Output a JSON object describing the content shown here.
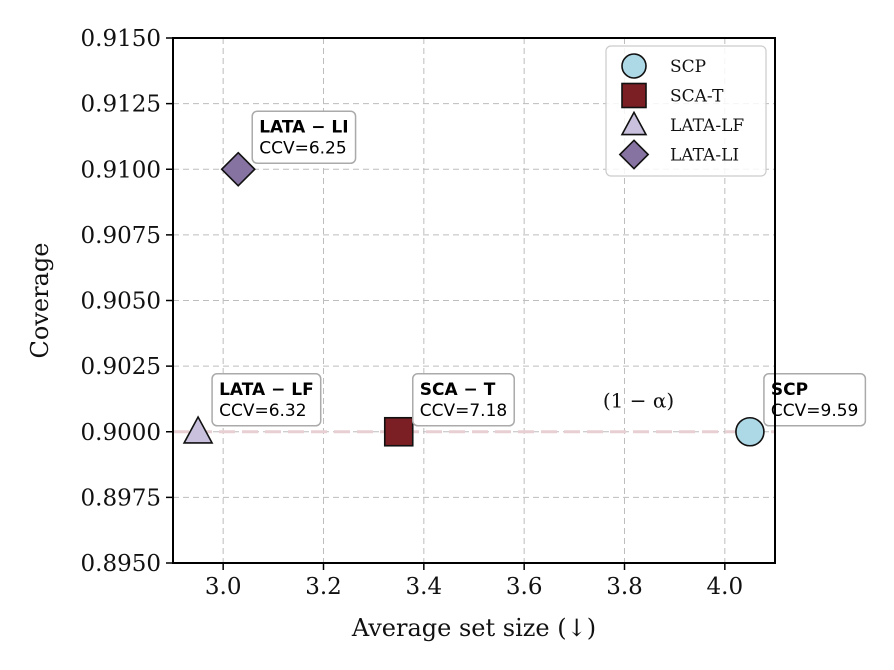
{
  "chart_data": {
    "type": "scatter",
    "title": "",
    "xlabel": "Average set size (↓)",
    "ylabel": "Coverage",
    "xlim": [
      2.9,
      4.1
    ],
    "ylim": [
      0.895,
      0.915
    ],
    "xticks": [
      3.0,
      3.2,
      3.4,
      3.6,
      3.8,
      4.0
    ],
    "xtick_labels": [
      "3.0",
      "3.2",
      "3.4",
      "3.6",
      "3.8",
      "4.0"
    ],
    "yticks": [
      0.895,
      0.8975,
      0.9,
      0.9025,
      0.905,
      0.9075,
      0.91,
      0.9125,
      0.915
    ],
    "ytick_labels": [
      "0.8950",
      "0.8975",
      "0.9000",
      "0.9025",
      "0.9050",
      "0.9075",
      "0.9100",
      "0.9125",
      "0.9150"
    ],
    "grid": true,
    "legend_position": "top-right",
    "reference_line": {
      "y": 0.9,
      "label": "(1 − α)",
      "label_x": 3.82,
      "label_y": 0.9012,
      "color": "#e8cfd3"
    },
    "series": [
      {
        "name": "SCP",
        "marker": "circle",
        "color": "#add8e6",
        "x": 4.05,
        "y": 0.9,
        "annotation_title": "SCP",
        "annotation_value": "CCV=9.59"
      },
      {
        "name": "SCA-T",
        "marker": "square",
        "color": "#7b1f24",
        "x": 3.35,
        "y": 0.9,
        "annotation_title": "SCA − T",
        "annotation_value": "CCV=7.18"
      },
      {
        "name": "LATA-LF",
        "marker": "triangle",
        "color": "#c8c0dc",
        "x": 2.95,
        "y": 0.9,
        "annotation_title": "LATA − LF",
        "annotation_value": "CCV=6.32"
      },
      {
        "name": "LATA-LI",
        "marker": "diamond",
        "color": "#8673a1",
        "x": 3.03,
        "y": 0.91,
        "annotation_title": "LATA − LI",
        "annotation_value": "CCV=6.25"
      }
    ]
  }
}
